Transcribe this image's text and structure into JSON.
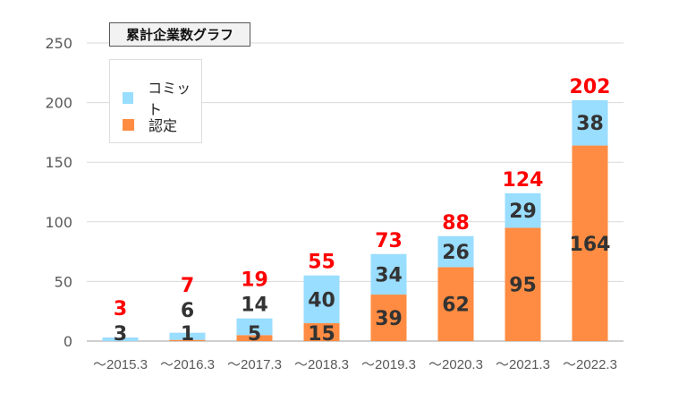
{
  "chart_data": {
    "type": "bar",
    "stacked": true,
    "title": "累計企業数グラフ",
    "categories": [
      "～2015.3",
      "～2016.3",
      "～2017.3",
      "～2018.3",
      "～2019.3",
      "～2020.3",
      "～2021.3",
      "～2022.3"
    ],
    "series": [
      {
        "name": "認定",
        "color": "#FF8C42",
        "values": [
          0,
          1,
          5,
          15,
          39,
          62,
          95,
          164
        ]
      },
      {
        "name": "コミット",
        "color": "#99DDFF",
        "values": [
          3,
          6,
          14,
          40,
          34,
          26,
          29,
          38
        ]
      }
    ],
    "totals": [
      3,
      7,
      19,
      55,
      73,
      88,
      124,
      202
    ],
    "total_label_color": "#FF0000",
    "ylim": [
      0,
      250
    ],
    "yticks": [
      0,
      50,
      100,
      150,
      200,
      250
    ],
    "grid": true,
    "legend_position": "top-left",
    "legend_order": [
      "コミット",
      "認定"
    ],
    "xlabel": "",
    "ylabel": ""
  }
}
